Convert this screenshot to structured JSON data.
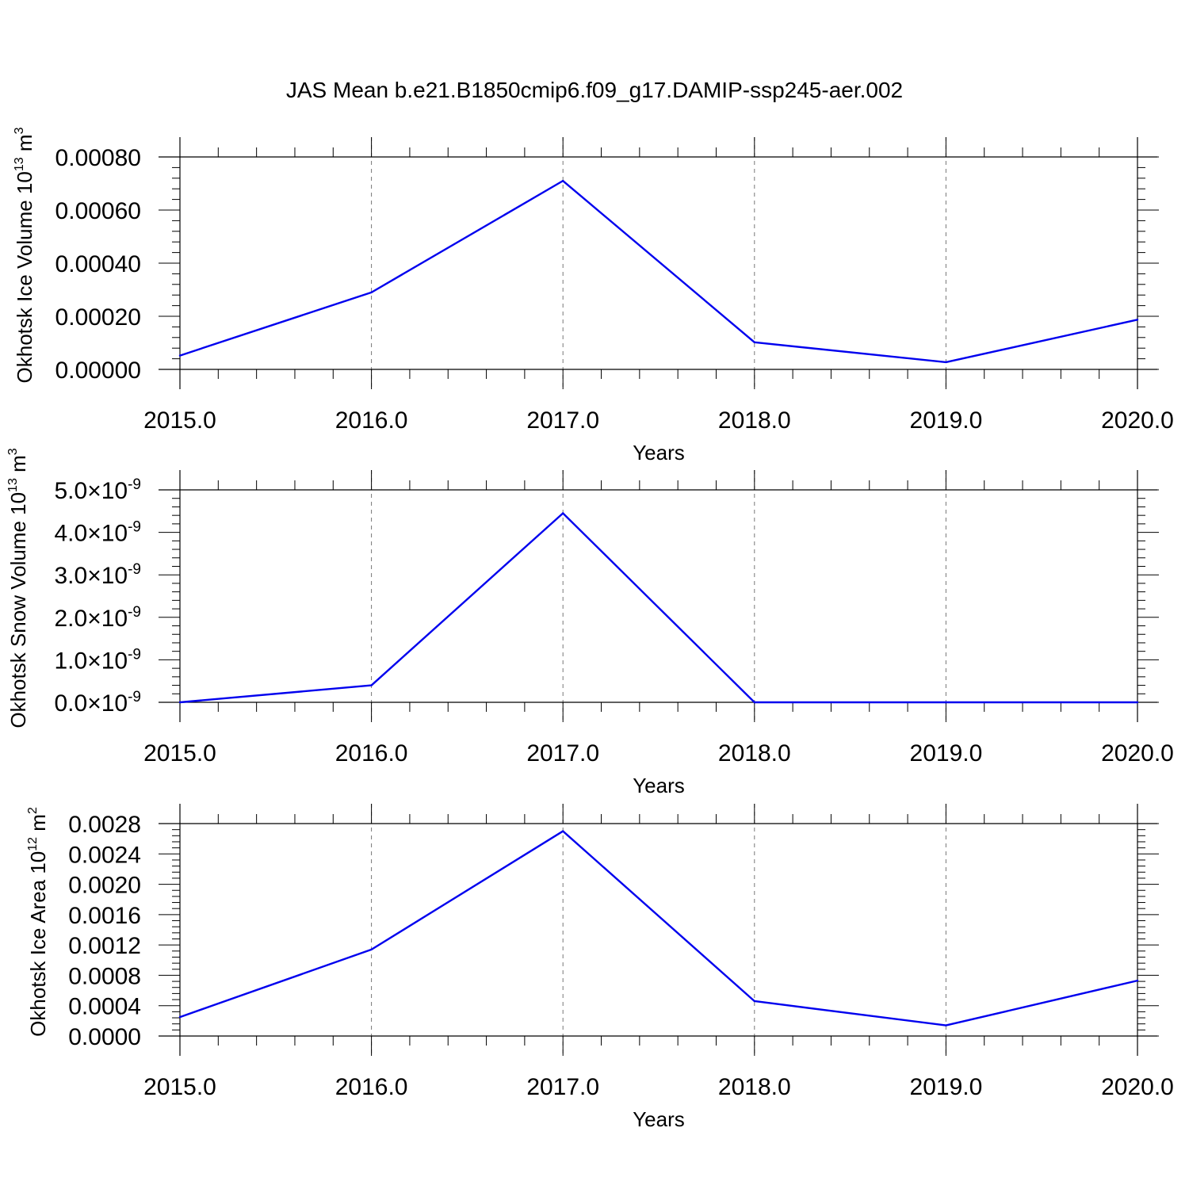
{
  "title": "JAS Mean b.e21.B1850cmip6.f09_g17.DAMIP-ssp245-aer.002",
  "series_color": "#0000ee",
  "chart_data": [
    {
      "type": "line",
      "xlabel": "Years",
      "ylabel": "Okhotsk Ice Volume 10",
      "ylabel_exp": "13",
      "ylabel_unit": " m",
      "ylabel_unit_exp": "3",
      "xlim": [
        2015,
        2020
      ],
      "ylim": [
        0,
        0.0008
      ],
      "x_ticks": [
        "2015.0",
        "2016.0",
        "2017.0",
        "2018.0",
        "2019.0",
        "2020.0"
      ],
      "y_ticks": [
        "0.00000",
        "0.00020",
        "0.00040",
        "0.00060",
        "0.00080"
      ],
      "grid": "vertical dashed",
      "x": [
        2015,
        2016,
        2017,
        2018,
        2019,
        2020
      ],
      "values": [
        5.2e-05,
        0.00029,
        0.00071,
        0.000102,
        2.7e-05,
        0.000187
      ]
    },
    {
      "type": "line",
      "xlabel": "Years",
      "ylabel": "Okhotsk Snow Volume 10",
      "ylabel_exp": "13",
      "ylabel_unit": " m",
      "ylabel_unit_exp": "3",
      "xlim": [
        2015,
        2020
      ],
      "ylim": [
        0,
        5e-09
      ],
      "x_ticks": [
        "2015.0",
        "2016.0",
        "2017.0",
        "2018.0",
        "2019.0",
        "2020.0"
      ],
      "y_ticks": [
        "0.0",
        "1.0",
        "2.0",
        "3.0",
        "4.0",
        "5.0"
      ],
      "y_tick_multiplier": "×10",
      "y_tick_exp": "-9",
      "grid": "vertical dashed",
      "x": [
        2015,
        2016,
        2017,
        2018,
        2019,
        2020
      ],
      "values": [
        0,
        4e-10,
        4.45e-09,
        0,
        0,
        0
      ]
    },
    {
      "type": "line",
      "xlabel": "Years",
      "ylabel": "Okhotsk Ice Area 10",
      "ylabel_exp": "12",
      "ylabel_unit": " m",
      "ylabel_unit_exp": "2",
      "xlim": [
        2015,
        2020
      ],
      "ylim": [
        0,
        0.0028
      ],
      "x_ticks": [
        "2015.0",
        "2016.0",
        "2017.0",
        "2018.0",
        "2019.0",
        "2020.0"
      ],
      "y_ticks": [
        "0.0000",
        "0.0004",
        "0.0008",
        "0.0012",
        "0.0016",
        "0.0020",
        "0.0024",
        "0.0028"
      ],
      "grid": "vertical dashed",
      "x": [
        2015,
        2016,
        2017,
        2018,
        2019,
        2020
      ],
      "values": [
        0.00025,
        0.00114,
        0.0027,
        0.00046,
        0.00014,
        0.00073
      ]
    }
  ]
}
